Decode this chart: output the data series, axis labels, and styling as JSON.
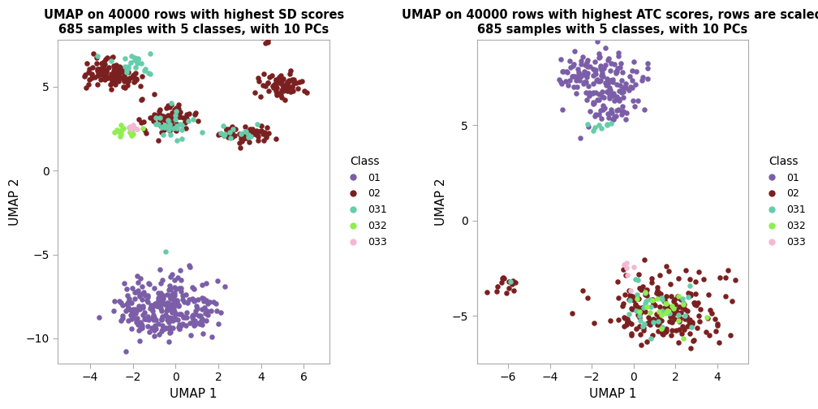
{
  "title1": "UMAP on 40000 rows with highest SD scores\n685 samples with 5 classes, with 10 PCs",
  "title2": "UMAP on 40000 rows with highest ATC scores, rows are scaled\n685 samples with 5 classes, with 10 PCs",
  "xlabel": "UMAP 1",
  "ylabel": "UMAP 2",
  "classes": [
    "01",
    "02",
    "031",
    "032",
    "033"
  ],
  "colors": {
    "01": "#7B5EA7",
    "02": "#7B2020",
    "031": "#66CDAA",
    "032": "#90EE50",
    "033": "#F4B8D4"
  },
  "legend_title": "Class",
  "xlim1": [
    -5.5,
    7.2
  ],
  "ylim1": [
    -11.5,
    7.8
  ],
  "xticks1": [
    -4,
    -2,
    0,
    2,
    4,
    6
  ],
  "yticks1": [
    -10,
    -5,
    0,
    5
  ],
  "xlim2": [
    -7.5,
    5.5
  ],
  "ylim2": [
    -7.5,
    9.5
  ],
  "xticks2": [
    -6,
    -4,
    -2,
    0,
    2,
    4
  ],
  "yticks2": [
    -5,
    0,
    5
  ],
  "point_size": 22,
  "alpha": 1.0,
  "bg_color": "#FFFFFF",
  "spine_color": "#AAAAAA"
}
